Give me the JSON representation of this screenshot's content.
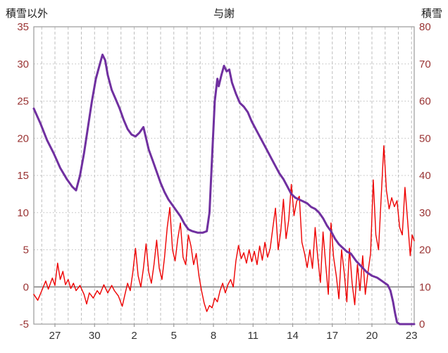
{
  "chart_data": {
    "type": "line",
    "title": "与謝",
    "left_axis": {
      "label": "積雪以外",
      "min": -5,
      "max": 35,
      "ticks": [
        35,
        30,
        25,
        20,
        15,
        10,
        5,
        0,
        -5
      ]
    },
    "right_axis": {
      "label": "積雪",
      "min": 0,
      "max": 80,
      "ticks": [
        80,
        70,
        60,
        50,
        40,
        30,
        20,
        10,
        0
      ]
    },
    "x_axis": {
      "min": 0,
      "max": 28.8,
      "grid_start": 0.6,
      "grid_interval": 1,
      "tick_positions": [
        1.6,
        4.6,
        7.6,
        10.6,
        13.6,
        16.6,
        19.6,
        22.6,
        25.6,
        28.6
      ],
      "tick_labels": [
        "27",
        "30",
        "2",
        "5",
        "8",
        "11",
        "14",
        "17",
        "20",
        "23"
      ]
    },
    "zero_line_left_value": 0,
    "style": {
      "grid": "#bdbdbd",
      "frame": "#9a9a9a",
      "zero_line": "#808080",
      "y_tick_text": "#993333",
      "x_tick_text": "#333333"
    },
    "series": [
      {
        "name": "積雪以外",
        "axis": "left",
        "color": "#ee0000",
        "width": 1.4,
        "points": [
          [
            0.0,
            -1.0
          ],
          [
            0.3,
            -1.8
          ],
          [
            0.6,
            -0.5
          ],
          [
            0.9,
            0.8
          ],
          [
            1.1,
            -0.3
          ],
          [
            1.4,
            1.2
          ],
          [
            1.6,
            0.2
          ],
          [
            1.8,
            3.2
          ],
          [
            2.0,
            1.0
          ],
          [
            2.2,
            2.1
          ],
          [
            2.4,
            0.3
          ],
          [
            2.6,
            1.0
          ],
          [
            2.8,
            -0.2
          ],
          [
            3.0,
            0.5
          ],
          [
            3.2,
            -0.5
          ],
          [
            3.5,
            0.2
          ],
          [
            3.8,
            -1.0
          ],
          [
            4.0,
            -2.3
          ],
          [
            4.2,
            -0.8
          ],
          [
            4.5,
            -1.5
          ],
          [
            4.8,
            -0.5
          ],
          [
            5.0,
            -1.0
          ],
          [
            5.3,
            0.3
          ],
          [
            5.6,
            -0.8
          ],
          [
            5.9,
            0.2
          ],
          [
            6.1,
            -0.5
          ],
          [
            6.4,
            -1.2
          ],
          [
            6.7,
            -2.6
          ],
          [
            6.9,
            -1.0
          ],
          [
            7.1,
            0.5
          ],
          [
            7.3,
            -0.5
          ],
          [
            7.5,
            2.0
          ],
          [
            7.7,
            5.2
          ],
          [
            7.9,
            1.5
          ],
          [
            8.1,
            0.0
          ],
          [
            8.3,
            2.5
          ],
          [
            8.5,
            5.8
          ],
          [
            8.7,
            2.0
          ],
          [
            8.9,
            0.5
          ],
          [
            9.1,
            3.0
          ],
          [
            9.3,
            6.3
          ],
          [
            9.5,
            2.5
          ],
          [
            9.7,
            1.0
          ],
          [
            9.9,
            4.0
          ],
          [
            10.1,
            8.0
          ],
          [
            10.3,
            10.7
          ],
          [
            10.5,
            5.0
          ],
          [
            10.7,
            3.5
          ],
          [
            10.9,
            6.5
          ],
          [
            11.1,
            8.6
          ],
          [
            11.3,
            4.0
          ],
          [
            11.5,
            3.0
          ],
          [
            11.7,
            7.0
          ],
          [
            11.9,
            5.5
          ],
          [
            12.1,
            3.0
          ],
          [
            12.3,
            4.5
          ],
          [
            12.5,
            1.5
          ],
          [
            12.7,
            -0.5
          ],
          [
            12.9,
            -2.2
          ],
          [
            13.1,
            -3.3
          ],
          [
            13.3,
            -2.5
          ],
          [
            13.5,
            -2.8
          ],
          [
            13.7,
            -1.5
          ],
          [
            13.9,
            -2.0
          ],
          [
            14.1,
            -0.5
          ],
          [
            14.3,
            0.5
          ],
          [
            14.5,
            -0.8
          ],
          [
            14.7,
            0.3
          ],
          [
            14.9,
            1.0
          ],
          [
            15.1,
            0.0
          ],
          [
            15.3,
            3.5
          ],
          [
            15.5,
            5.6
          ],
          [
            15.7,
            3.8
          ],
          [
            15.9,
            4.6
          ],
          [
            16.1,
            3.2
          ],
          [
            16.3,
            5.0
          ],
          [
            16.5,
            3.4
          ],
          [
            16.7,
            4.8
          ],
          [
            16.9,
            3.0
          ],
          [
            17.1,
            5.5
          ],
          [
            17.3,
            3.6
          ],
          [
            17.5,
            6.0
          ],
          [
            17.7,
            4.0
          ],
          [
            17.9,
            5.2
          ],
          [
            18.1,
            8.0
          ],
          [
            18.3,
            10.6
          ],
          [
            18.5,
            5.0
          ],
          [
            18.7,
            7.5
          ],
          [
            18.9,
            11.8
          ],
          [
            19.1,
            6.5
          ],
          [
            19.3,
            9.0
          ],
          [
            19.5,
            13.8
          ],
          [
            19.7,
            9.6
          ],
          [
            19.9,
            11.5
          ],
          [
            20.1,
            12.2
          ],
          [
            20.3,
            6.0
          ],
          [
            20.5,
            4.5
          ],
          [
            20.7,
            2.6
          ],
          [
            20.9,
            5.0
          ],
          [
            21.1,
            2.5
          ],
          [
            21.3,
            8.0
          ],
          [
            21.5,
            4.0
          ],
          [
            21.7,
            0.6
          ],
          [
            21.9,
            7.4
          ],
          [
            22.1,
            3.0
          ],
          [
            22.3,
            -1.0
          ],
          [
            22.5,
            8.6
          ],
          [
            22.7,
            4.0
          ],
          [
            22.9,
            1.5
          ],
          [
            23.1,
            -1.6
          ],
          [
            23.3,
            5.0
          ],
          [
            23.5,
            2.0
          ],
          [
            23.7,
            -2.0
          ],
          [
            23.9,
            5.2
          ],
          [
            24.1,
            0.5
          ],
          [
            24.3,
            -2.4
          ],
          [
            24.5,
            3.0
          ],
          [
            24.7,
            -0.5
          ],
          [
            24.9,
            4.2
          ],
          [
            25.1,
            -1.0
          ],
          [
            25.3,
            2.0
          ],
          [
            25.5,
            4.5
          ],
          [
            25.7,
            14.4
          ],
          [
            25.9,
            7.0
          ],
          [
            26.1,
            5.0
          ],
          [
            26.3,
            12.0
          ],
          [
            26.5,
            19.0
          ],
          [
            26.7,
            13.0
          ],
          [
            26.9,
            10.5
          ],
          [
            27.1,
            12.0
          ],
          [
            27.3,
            10.8
          ],
          [
            27.5,
            11.6
          ],
          [
            27.7,
            8.0
          ],
          [
            27.9,
            7.0
          ],
          [
            28.1,
            13.4
          ],
          [
            28.3,
            9.0
          ],
          [
            28.5,
            4.2
          ],
          [
            28.65,
            7.0
          ],
          [
            28.8,
            6.2
          ]
        ]
      },
      {
        "name": "積雪",
        "axis": "right",
        "color": "#7030a0",
        "width": 3,
        "points": [
          [
            0.0,
            58
          ],
          [
            0.5,
            54
          ],
          [
            1.0,
            49.5
          ],
          [
            1.5,
            46
          ],
          [
            2.0,
            42
          ],
          [
            2.5,
            39
          ],
          [
            2.9,
            37
          ],
          [
            3.2,
            36
          ],
          [
            3.5,
            40
          ],
          [
            3.8,
            46
          ],
          [
            4.1,
            53
          ],
          [
            4.4,
            60
          ],
          [
            4.7,
            66
          ],
          [
            5.0,
            70
          ],
          [
            5.2,
            72.5
          ],
          [
            5.4,
            71
          ],
          [
            5.6,
            67
          ],
          [
            5.9,
            63
          ],
          [
            6.2,
            60.5
          ],
          [
            6.5,
            58
          ],
          [
            6.8,
            55
          ],
          [
            7.1,
            52.5
          ],
          [
            7.4,
            51
          ],
          [
            7.7,
            50.5
          ],
          [
            8.0,
            51.5
          ],
          [
            8.3,
            53
          ],
          [
            8.5,
            50
          ],
          [
            8.7,
            47
          ],
          [
            9.0,
            44
          ],
          [
            9.3,
            41
          ],
          [
            9.6,
            38
          ],
          [
            9.9,
            35.5
          ],
          [
            10.2,
            33.5
          ],
          [
            10.5,
            32
          ],
          [
            10.8,
            30.5
          ],
          [
            11.1,
            29
          ],
          [
            11.4,
            27
          ],
          [
            11.7,
            25.5
          ],
          [
            12.0,
            25
          ],
          [
            12.4,
            24.6
          ],
          [
            12.8,
            24.6
          ],
          [
            13.1,
            25
          ],
          [
            13.3,
            30
          ],
          [
            13.5,
            45
          ],
          [
            13.7,
            60
          ],
          [
            13.9,
            66
          ],
          [
            14.0,
            64
          ],
          [
            14.2,
            67
          ],
          [
            14.4,
            69.5
          ],
          [
            14.6,
            68
          ],
          [
            14.8,
            68.5
          ],
          [
            15.0,
            65
          ],
          [
            15.3,
            62
          ],
          [
            15.6,
            59.5
          ],
          [
            15.9,
            58.5
          ],
          [
            16.2,
            57
          ],
          [
            16.5,
            54.5
          ],
          [
            16.8,
            52.5
          ],
          [
            17.1,
            50.5
          ],
          [
            17.4,
            48.5
          ],
          [
            17.7,
            46.5
          ],
          [
            18.0,
            44.5
          ],
          [
            18.3,
            42.5
          ],
          [
            18.6,
            40.5
          ],
          [
            18.9,
            39
          ],
          [
            19.2,
            37
          ],
          [
            19.5,
            35
          ],
          [
            19.8,
            34
          ],
          [
            20.1,
            33.5
          ],
          [
            20.4,
            33
          ],
          [
            20.7,
            32.5
          ],
          [
            21.0,
            31.5
          ],
          [
            21.3,
            31
          ],
          [
            21.6,
            30
          ],
          [
            21.9,
            28.5
          ],
          [
            22.2,
            26.5
          ],
          [
            22.5,
            25
          ],
          [
            22.8,
            23
          ],
          [
            23.1,
            21.5
          ],
          [
            23.4,
            20.5
          ],
          [
            23.7,
            19.5
          ],
          [
            24.0,
            19
          ],
          [
            24.4,
            17
          ],
          [
            24.8,
            15.5
          ],
          [
            25.2,
            14
          ],
          [
            25.6,
            13
          ],
          [
            26.0,
            12.5
          ],
          [
            26.4,
            11.5
          ],
          [
            26.8,
            10.5
          ],
          [
            27.0,
            9
          ],
          [
            27.2,
            6
          ],
          [
            27.35,
            3
          ],
          [
            27.5,
            0.5
          ],
          [
            27.7,
            0
          ],
          [
            28.0,
            0
          ],
          [
            28.4,
            0
          ],
          [
            28.8,
            0
          ]
        ]
      }
    ]
  }
}
